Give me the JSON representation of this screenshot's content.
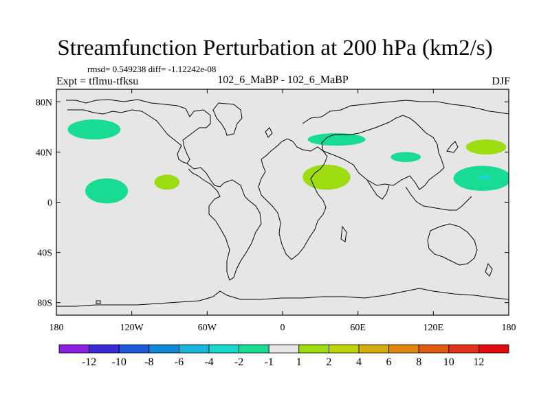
{
  "chart_data": {
    "type": "contour-map",
    "title": "Streamfunction Perturbation at 200 hPa (km2/s)",
    "stats": "rmsd= 0.549238 diff= -1.12242e-08",
    "experiment_label": "Expt = tflmu-tfksu",
    "case_label": "102_6_MaBP - 102_6_MaBP",
    "season": "DJF",
    "x_ticks": [
      "180",
      "120W",
      "60W",
      "0",
      "60E",
      "120E",
      "180"
    ],
    "y_ticks": [
      "80N",
      "40N",
      "0",
      "40S",
      "80S"
    ],
    "x_range": [
      -180,
      180
    ],
    "y_range": [
      -90,
      90
    ],
    "colorbar": {
      "labels": [
        "-12",
        "-10",
        "-8",
        "-6",
        "-4",
        "-2",
        "-1",
        "1",
        "2",
        "4",
        "6",
        "8",
        "10",
        "12"
      ],
      "colors": [
        "#8a1fe0",
        "#3a2ad8",
        "#1e57d8",
        "#0f88d8",
        "#16b6dc",
        "#18d8cc",
        "#18dc94",
        "#e6e6e6",
        "#9cdc10",
        "#c0d40c",
        "#d8ac0c",
        "#e2840e",
        "#e25a10",
        "#e2341a",
        "#e20a0a"
      ]
    },
    "anomalies": [
      {
        "lon": -150,
        "lat": 58,
        "rx": 21,
        "ry": 8,
        "level": "-2 to -1"
      },
      {
        "lon": -140,
        "lat": 9,
        "rx": 17,
        "ry": 10,
        "level": "-2 to -1"
      },
      {
        "lon": -92,
        "lat": 16,
        "rx": 10,
        "ry": 6,
        "level": "1 to 2"
      },
      {
        "lon": 43,
        "lat": 50,
        "rx": 23,
        "ry": 5,
        "level": "-2 to -1"
      },
      {
        "lon": 35,
        "lat": 20,
        "rx": 19,
        "ry": 10,
        "level": "1 to 2"
      },
      {
        "lon": 98,
        "lat": 36,
        "rx": 12,
        "ry": 4,
        "level": "-2 to -1"
      },
      {
        "lon": 162,
        "lat": 44,
        "rx": 16,
        "ry": 6,
        "level": "1 to 2"
      },
      {
        "lon": 159,
        "lat": 19,
        "rx": 23,
        "ry": 10,
        "level": "-2 to -1"
      },
      {
        "lon": 161,
        "lat": 20,
        "rx": 5,
        "ry": 2,
        "level": "-4 to -2"
      }
    ],
    "colors": {
      "background": "#e6e6e6",
      "neg_light": "#18dc94",
      "neg_mid": "#18d8cc",
      "pos_light": "#9cdc10"
    }
  }
}
